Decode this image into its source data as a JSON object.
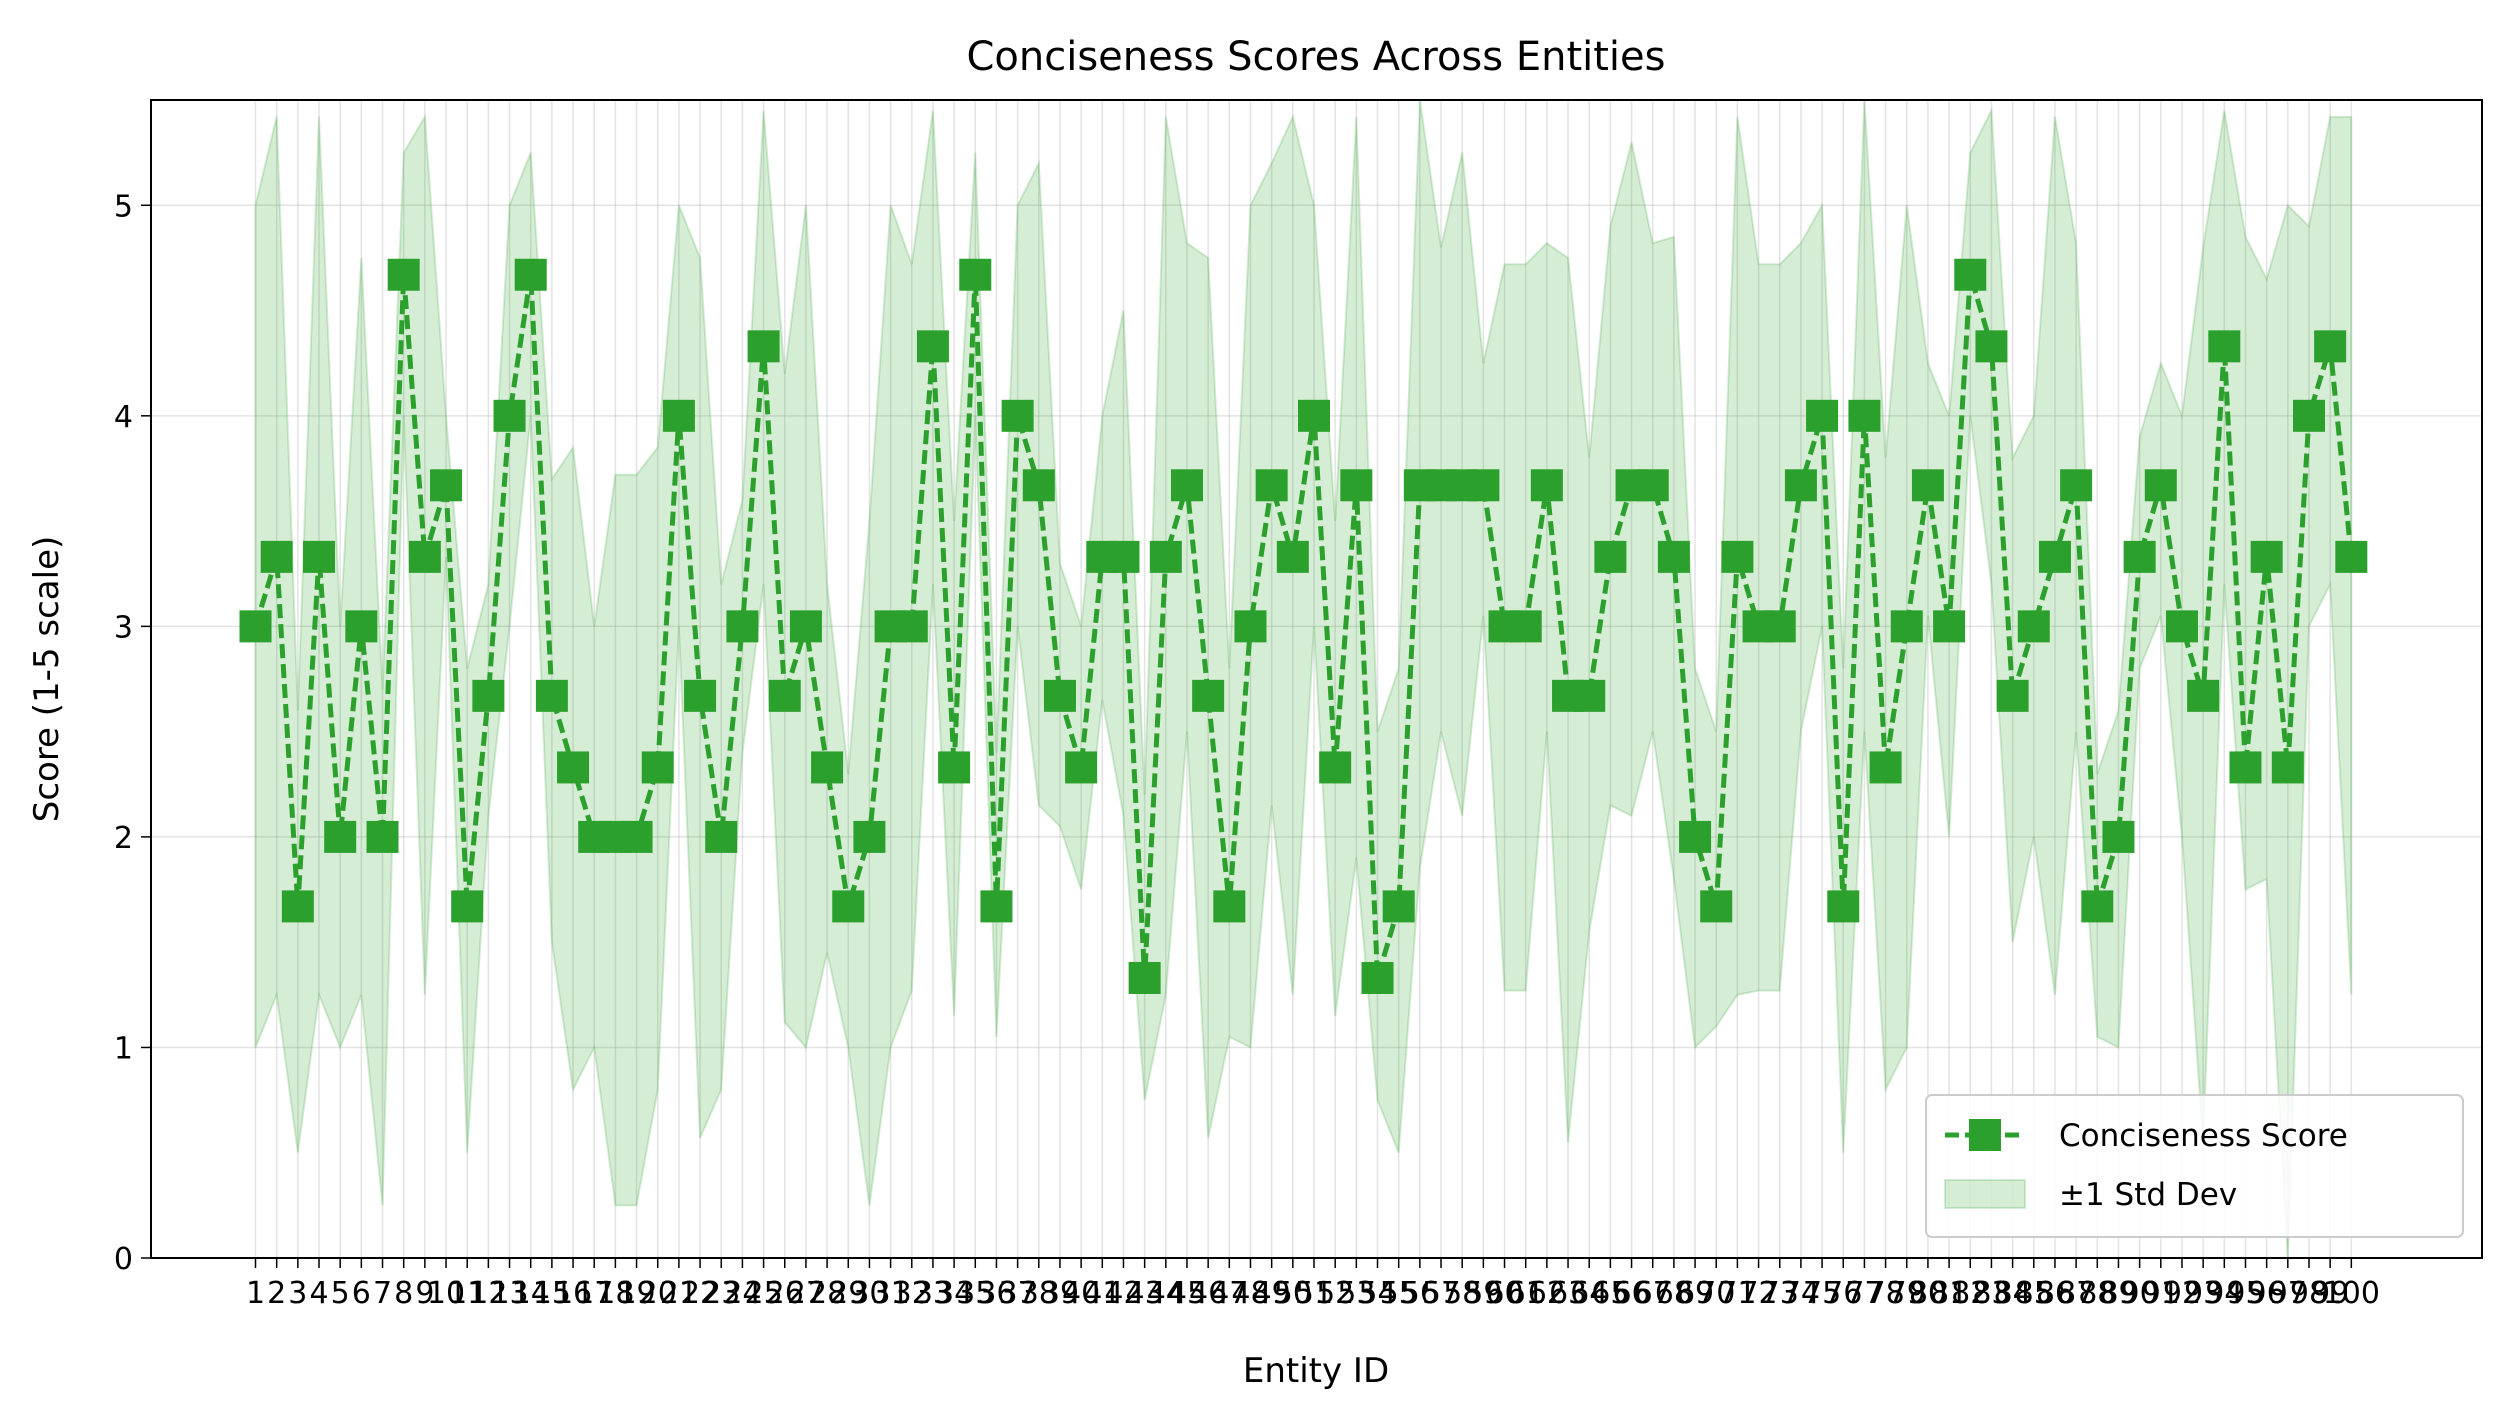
{
  "chart_data": {
    "type": "line",
    "title": "Conciseness Scores Across Entities",
    "xlabel": "Entity ID",
    "ylabel": "Score (1-5 scale)",
    "xlim": [
      1,
      100
    ],
    "ylim": [
      0,
      5.5
    ],
    "y_ticks": [
      0,
      1,
      2,
      3,
      4,
      5
    ],
    "x": [
      1,
      2,
      3,
      4,
      5,
      6,
      7,
      8,
      9,
      10,
      11,
      12,
      13,
      14,
      15,
      16,
      17,
      18,
      19,
      20,
      21,
      22,
      23,
      24,
      25,
      26,
      27,
      28,
      29,
      30,
      31,
      32,
      33,
      34,
      35,
      36,
      37,
      38,
      39,
      40,
      41,
      42,
      43,
      44,
      45,
      46,
      47,
      48,
      49,
      50,
      51,
      52,
      53,
      54,
      55,
      56,
      57,
      58,
      59,
      60,
      61,
      62,
      63,
      64,
      65,
      66,
      67,
      68,
      69,
      70,
      71,
      72,
      73,
      74,
      75,
      76,
      77,
      78,
      79,
      80,
      81,
      82,
      83,
      84,
      85,
      86,
      87,
      88,
      89,
      90,
      91,
      92,
      93,
      94,
      95,
      96,
      97,
      98,
      99,
      100
    ],
    "grid": true,
    "legend_position": "lower right",
    "series": [
      {
        "name": "Conciseness Score",
        "color": "#2ca02c",
        "marker": "square",
        "linestyle": "dashed",
        "values": [
          3.0,
          3.33,
          1.67,
          3.33,
          2.0,
          3.0,
          2.0,
          4.67,
          3.33,
          3.67,
          1.67,
          2.67,
          4.0,
          4.67,
          2.67,
          2.33,
          2.0,
          2.0,
          2.0,
          2.33,
          4.0,
          2.67,
          2.0,
          3.0,
          4.33,
          2.67,
          3.0,
          2.33,
          1.67,
          2.0,
          3.0,
          3.0,
          4.33,
          2.33,
          4.67,
          1.67,
          4.0,
          3.67,
          2.67,
          2.33,
          3.33,
          3.33,
          1.33,
          3.33,
          3.67,
          2.67,
          1.67,
          3.0,
          3.67,
          3.33,
          4.0,
          2.33,
          3.67,
          1.33,
          1.67,
          3.67,
          3.67,
          3.67,
          3.67,
          3.0,
          3.0,
          3.67,
          2.67,
          2.67,
          3.33,
          3.67,
          3.67,
          3.33,
          2.0,
          1.67,
          3.33,
          3.0,
          3.0,
          3.67,
          4.0,
          1.67,
          4.0,
          2.33,
          3.0,
          3.67,
          3.0,
          4.67,
          4.33,
          2.67,
          3.0,
          3.33,
          3.67,
          1.67,
          2.0,
          3.33,
          3.67,
          3.0,
          2.67,
          4.33,
          2.33,
          3.33,
          2.33,
          4.0,
          4.33,
          3.33
        ]
      },
      {
        "name": "±1 Std Dev",
        "color": "#2ca02c",
        "fill_alpha": 0.2,
        "upper": [
          5.0,
          5.42,
          2.6,
          5.42,
          3.0,
          4.75,
          2.7,
          5.25,
          5.42,
          4.0,
          2.8,
          3.2,
          5.0,
          5.25,
          3.7,
          3.85,
          3.0,
          3.72,
          3.72,
          3.85,
          5.0,
          4.75,
          3.2,
          3.6,
          5.45,
          4.2,
          5.0,
          3.2,
          2.3,
          3.5,
          5.0,
          4.72,
          5.45,
          3.5,
          5.25,
          2.4,
          5.0,
          5.2,
          3.3,
          3.0,
          4.0,
          4.5,
          2.2,
          5.42,
          4.82,
          4.75,
          2.8,
          5.0,
          5.2,
          5.42,
          5.0,
          3.5,
          5.42,
          2.5,
          2.8,
          5.5,
          4.8,
          5.25,
          4.25,
          4.72,
          4.72,
          4.82,
          4.75,
          3.8,
          4.9,
          5.3,
          4.82,
          4.85,
          2.8,
          2.5,
          5.42,
          4.72,
          4.72,
          4.82,
          5.0,
          2.8,
          5.5,
          3.8,
          5.0,
          4.25,
          4.0,
          5.25,
          5.45,
          3.8,
          4.0,
          5.42,
          4.82,
          2.3,
          2.6,
          3.9,
          4.25,
          4.0,
          4.8,
          5.45,
          4.85,
          4.65,
          5.0,
          4.9,
          5.42,
          5.42
        ],
        "lower": [
          1.0,
          1.25,
          0.5,
          1.25,
          1.0,
          1.25,
          0.25,
          4.0,
          1.25,
          3.33,
          0.5,
          2.1,
          3.0,
          4.0,
          1.5,
          0.8,
          1.0,
          0.25,
          0.25,
          0.8,
          3.0,
          0.57,
          0.8,
          2.4,
          3.2,
          1.12,
          1.0,
          1.45,
          1.0,
          0.25,
          1.0,
          1.27,
          3.2,
          1.15,
          4.0,
          1.05,
          3.0,
          2.15,
          2.05,
          1.75,
          2.65,
          2.1,
          0.75,
          1.25,
          2.5,
          0.57,
          1.05,
          1.0,
          2.15,
          1.25,
          3.0,
          1.15,
          1.9,
          0.75,
          0.5,
          1.85,
          2.5,
          2.1,
          3.05,
          1.27,
          1.27,
          2.5,
          0.55,
          1.55,
          2.15,
          2.1,
          2.5,
          1.8,
          1.0,
          1.1,
          1.25,
          1.27,
          1.27,
          2.5,
          3.0,
          0.5,
          2.5,
          0.8,
          1.0,
          3.05,
          2.0,
          4.0,
          3.2,
          1.5,
          2.0,
          1.25,
          2.5,
          1.05,
          1.0,
          2.8,
          3.05,
          2.0,
          0.55,
          3.2,
          1.75,
          1.8,
          0.0,
          3.0,
          3.2,
          1.25
        ]
      }
    ]
  }
}
